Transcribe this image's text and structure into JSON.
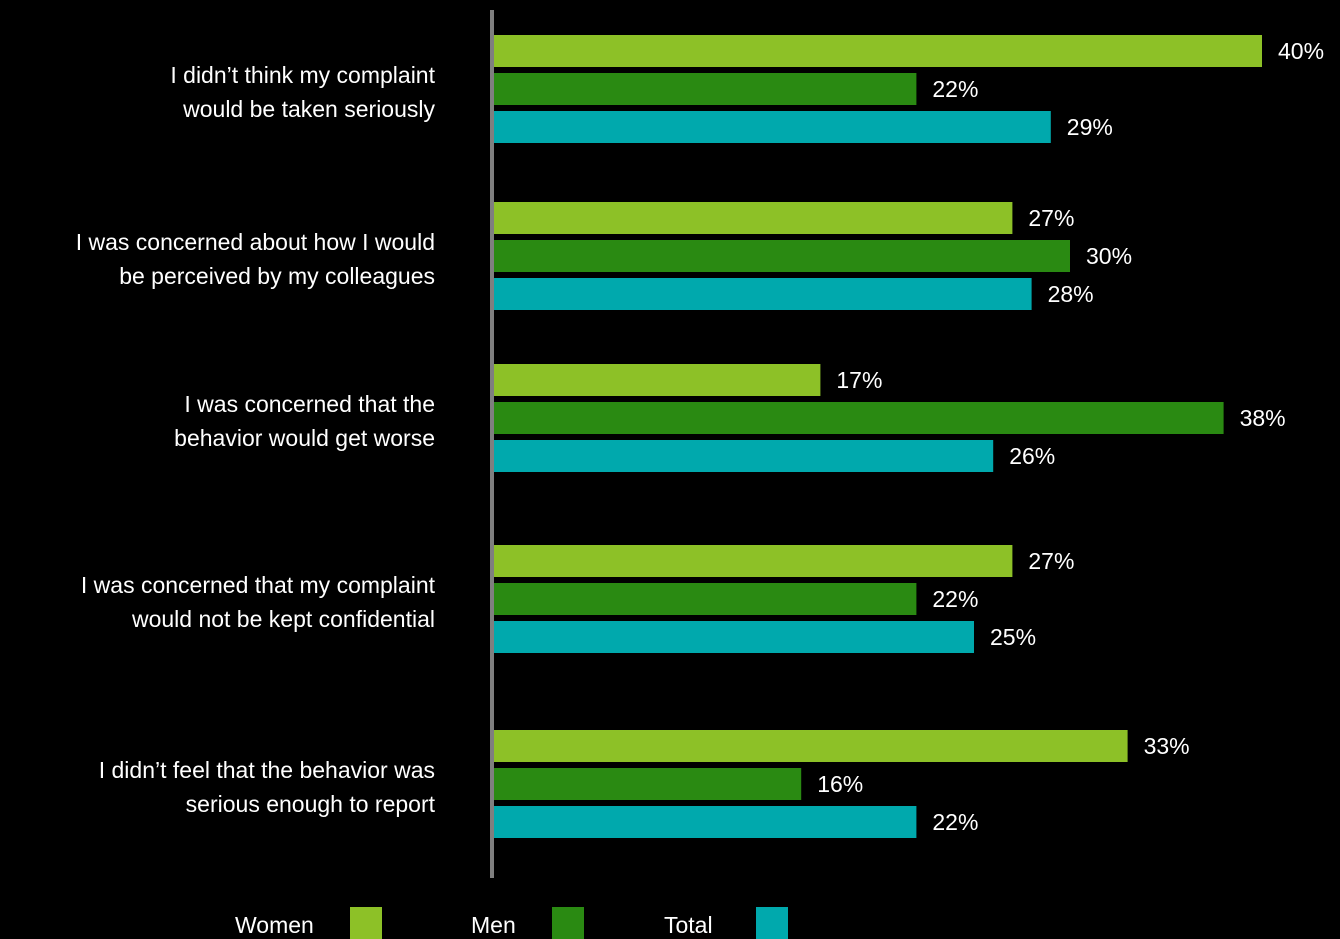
{
  "chart_data": {
    "type": "bar",
    "orientation": "horizontal",
    "categories": [
      [
        "I didn’t think my complaint",
        "would be taken seriously"
      ],
      [
        "I was concerned about how I would",
        "be perceived by my colleagues"
      ],
      [
        "I was concerned that the",
        "behavior would get worse"
      ],
      [
        "I was concerned that my complaint",
        "would not be kept confidential"
      ],
      [
        "I didn’t feel that the behavior was",
        "serious enough to report"
      ]
    ],
    "series": [
      {
        "name": "Women",
        "color": "#8dc127",
        "values": [
          40,
          27,
          17,
          27,
          33
        ],
        "labels": [
          "40%",
          "27%",
          "17%",
          "27%",
          "33%"
        ]
      },
      {
        "name": "Men",
        "color": "#2a8a12",
        "values": [
          22,
          30,
          38,
          22,
          16
        ],
        "labels": [
          "22%",
          "30%",
          "38%",
          "22%",
          "16%"
        ]
      },
      {
        "name": "Total",
        "color": "#00a9ad",
        "values": [
          29,
          28,
          26,
          25,
          22
        ],
        "labels": [
          "29%",
          "28%",
          "26%",
          "25%",
          "22%"
        ]
      }
    ],
    "value_suffix": "%",
    "xlim": [
      0,
      45
    ],
    "grid": false,
    "legend_position": "bottom",
    "axis_color": "#7f7f7f"
  }
}
